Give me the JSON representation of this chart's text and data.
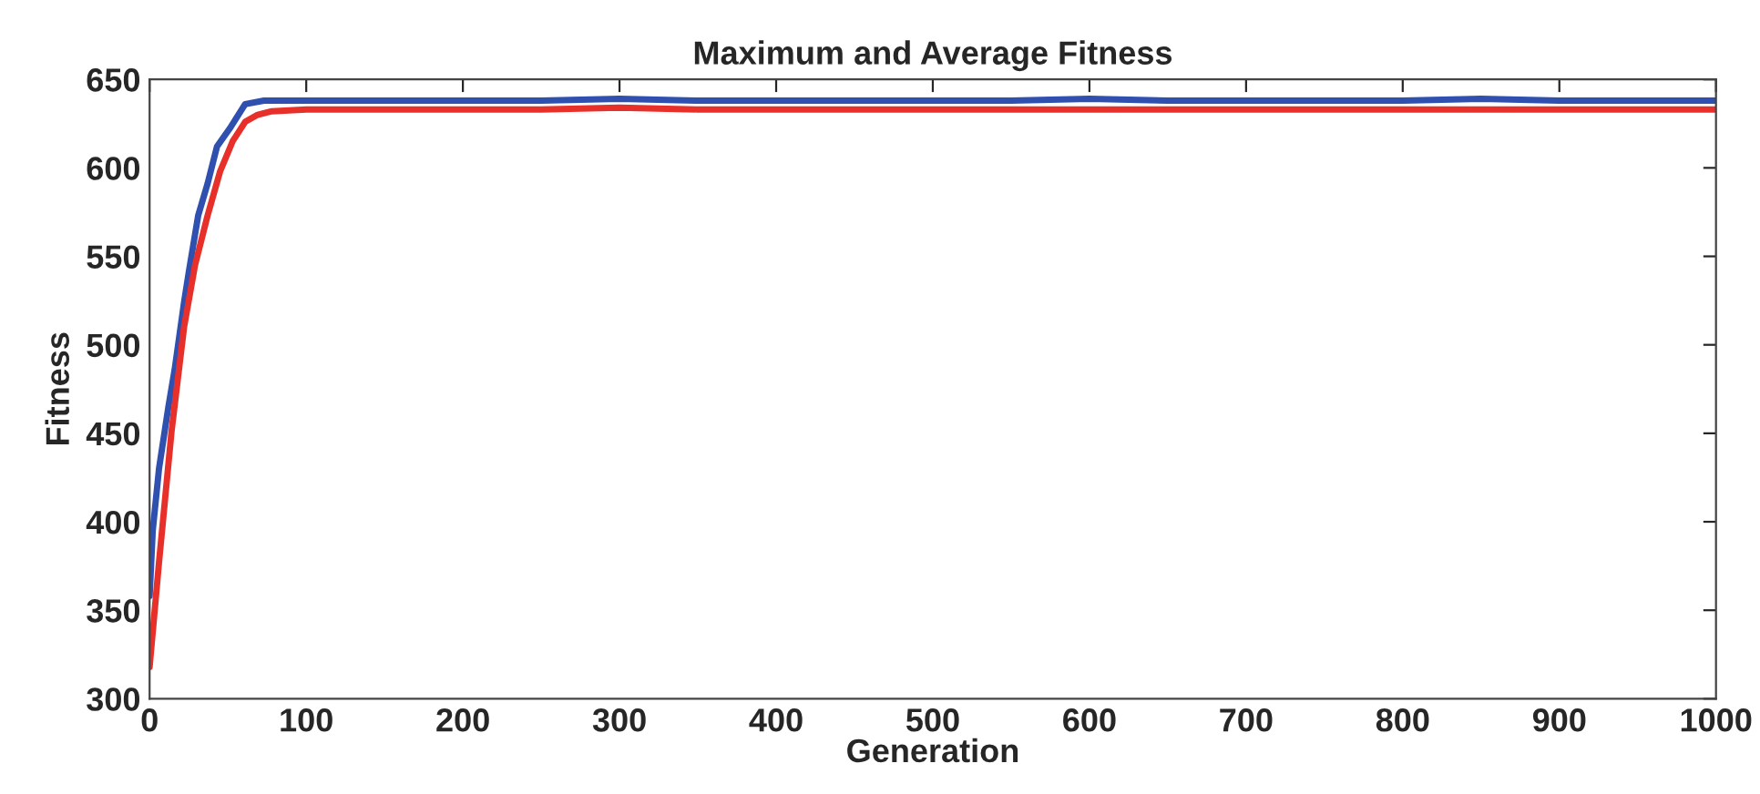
{
  "chart_data": {
    "type": "line",
    "title": "Maximum and Average Fitness",
    "xlabel": "Generation",
    "ylabel": "Fitness",
    "xlim": [
      0,
      1000
    ],
    "ylim": [
      300,
      650
    ],
    "xticks": [
      0,
      100,
      200,
      300,
      400,
      500,
      600,
      700,
      800,
      900,
      1000
    ],
    "yticks": [
      300,
      350,
      400,
      450,
      500,
      550,
      600,
      650
    ],
    "grid": false,
    "legend": false,
    "series": [
      {
        "color": "#3050b0",
        "x": [
          0,
          2,
          6,
          12,
          16,
          22,
          25,
          31,
          37,
          43,
          51,
          61,
          73,
          100,
          150,
          200,
          250,
          300,
          350,
          400,
          450,
          500,
          550,
          600,
          650,
          700,
          750,
          800,
          850,
          900,
          950,
          1000
        ],
        "values": [
          358,
          395,
          430,
          465,
          486,
          524,
          541,
          573,
          591,
          612,
          622,
          636,
          638,
          638,
          638,
          638,
          638,
          639,
          638,
          638,
          638,
          638,
          638,
          639,
          638,
          638,
          638,
          638,
          639,
          638,
          638,
          638
        ]
      },
      {
        "color": "#e8302a",
        "x": [
          0,
          6,
          14,
          22,
          29,
          37,
          45,
          53,
          61,
          69,
          78,
          100,
          150,
          200,
          250,
          300,
          350,
          400,
          450,
          500,
          550,
          600,
          650,
          700,
          750,
          800,
          850,
          900,
          950,
          1000
        ],
        "values": [
          318,
          377,
          451,
          510,
          545,
          573,
          598,
          615,
          626,
          630,
          632,
          633,
          633,
          633,
          633,
          634,
          633,
          633,
          633,
          633,
          633,
          633,
          633,
          633,
          633,
          633,
          633,
          633,
          633,
          633
        ]
      }
    ]
  }
}
